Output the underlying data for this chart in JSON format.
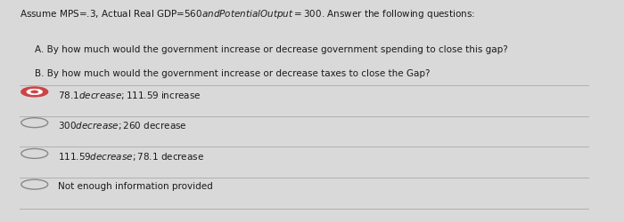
{
  "bg_color": "#d9d9d9",
  "text_color": "#1a1a1a",
  "header": "Assume MPS=.3, Actual Real GDP=$560 and Potential Output = $300. Answer the following questions:",
  "question_a": "A. By how much would the government increase or decrease government spending to close this gap?",
  "question_b": "B. By how much would the government increase or decrease taxes to close the Gap?",
  "options": [
    "$78.1 decrease; $111.59 increase",
    "$300 decrease; $260 decrease",
    "$111.59 decrease; $78.1 decrease",
    "Not enough information provided"
  ],
  "selected": 0,
  "divider_color": "#aaaaaa",
  "circle_color": "#888888",
  "selected_fill": "#cc3333"
}
